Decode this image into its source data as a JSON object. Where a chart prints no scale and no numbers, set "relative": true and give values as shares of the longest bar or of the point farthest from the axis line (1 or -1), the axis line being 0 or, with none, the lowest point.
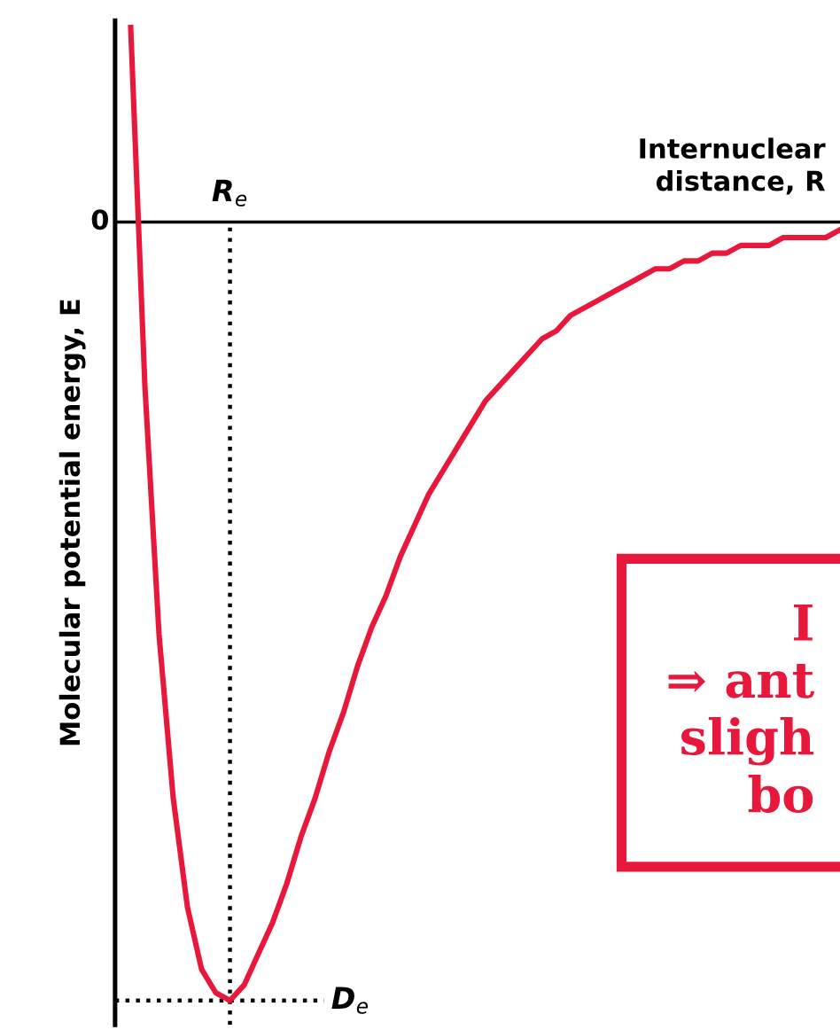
{
  "chart_data": {
    "type": "line",
    "relative": true,
    "xlabel": "Internuclear\ndistance, R",
    "ylabel": "Molecular potential energy, E",
    "legend": false,
    "marker": "none",
    "line_style": "solid",
    "categories": [
      null,
      null,
      null,
      null,
      null,
      null,
      null,
      null,
      null,
      null,
      null,
      null,
      null,
      null,
      null,
      null,
      null,
      null,
      null,
      null,
      null,
      null,
      null,
      null,
      null,
      null,
      null,
      null,
      null,
      null,
      null,
      null,
      null,
      null,
      null,
      null,
      null,
      null,
      null,
      null,
      null,
      null,
      null,
      null,
      null,
      null,
      null,
      null,
      null,
      null,
      null
    ],
    "series": [
      {
        "color": "#e8173c",
        "values": [
          0.25,
          -0.21,
          -0.53,
          -0.74,
          -0.88,
          -0.96,
          -0.99,
          -1,
          -0.98,
          -0.94,
          -0.9,
          -0.85,
          -0.79,
          -0.74,
          -0.68,
          -0.63,
          -0.57,
          -0.52,
          -0.48,
          -0.43,
          -0.39,
          -0.35,
          -0.32,
          -0.29,
          -0.26,
          -0.23,
          -0.21,
          -0.19,
          -0.17,
          -0.15,
          -0.14,
          -0.12,
          -0.11,
          -0.1,
          -0.09,
          -0.08,
          -0.07,
          -0.06,
          -0.06,
          -0.05,
          -0.05,
          -0.04,
          -0.04,
          -0.03,
          -0.03,
          -0.03,
          -0.02,
          -0.02,
          -0.02,
          -0.02,
          -0.01
        ]
      }
    ],
    "annotations": [
      "0",
      "R$_{e}$",
      "D$_{e}$",
      "I\n⇒ ant\nsligh\nbo"
    ]
  }
}
